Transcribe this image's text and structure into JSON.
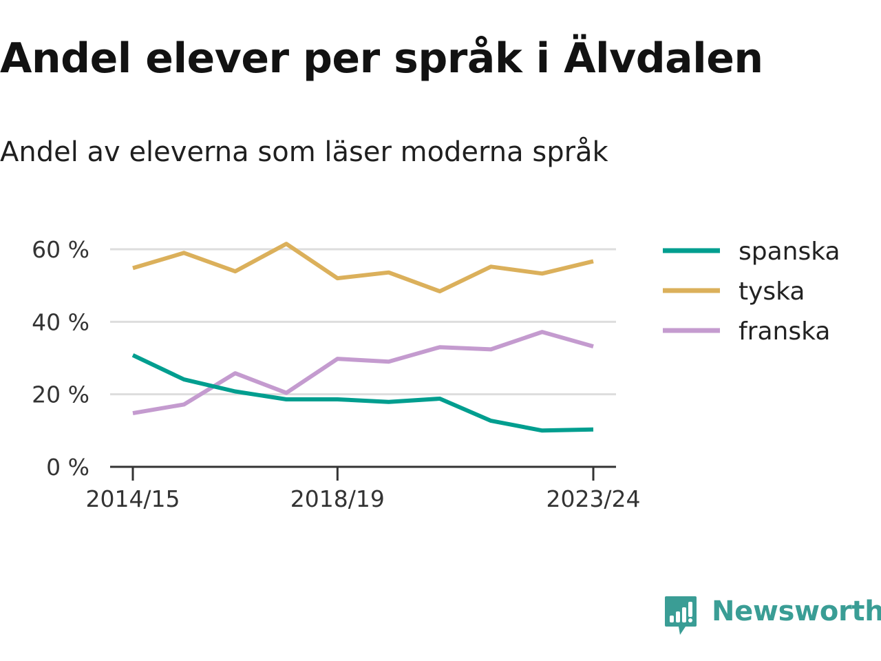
{
  "title": "Andel elever per språk i Älvdalen",
  "subtitle": "Andel av eleverna som läser moderna språk",
  "brand": {
    "name": "Newsworthy",
    "icon": "newsworthy-logo-icon",
    "color": "#3a9d95"
  },
  "colors": {
    "spanska": "#009e8f",
    "tyska": "#dbb05b",
    "franska": "#c49bcf",
    "grid": "#dddddd",
    "axis": "#333333",
    "tick_label": "#333333"
  },
  "chart_data": {
    "type": "line",
    "x": [
      "2014/15",
      "2015/16",
      "2016/17",
      "2017/18",
      "2018/19",
      "2019/20",
      "2020/21",
      "2021/22",
      "2022/23",
      "2023/24"
    ],
    "x_tick_labels": [
      "2014/15",
      "2018/19",
      "2023/24"
    ],
    "y_ticks": [
      0,
      20,
      40,
      60
    ],
    "y_tick_labels": [
      "0 %",
      "20 %",
      "40 %",
      "60 %"
    ],
    "ylim": [
      0,
      60
    ],
    "grid": true,
    "legend_placement": "right",
    "xlabel": "",
    "ylabel": "",
    "series": [
      {
        "name": "spanska",
        "values": [
          30.8,
          24.1,
          20.8,
          18.6,
          18.6,
          17.9,
          18.8,
          12.7,
          10.0,
          10.3
        ]
      },
      {
        "name": "tyska",
        "values": [
          54.8,
          59.0,
          53.9,
          61.5,
          52.0,
          53.6,
          48.4,
          55.2,
          53.3,
          56.7
        ]
      },
      {
        "name": "franska",
        "values": [
          14.8,
          17.2,
          25.8,
          20.4,
          29.8,
          29.0,
          33.0,
          32.4,
          37.2,
          33.2
        ]
      }
    ]
  }
}
